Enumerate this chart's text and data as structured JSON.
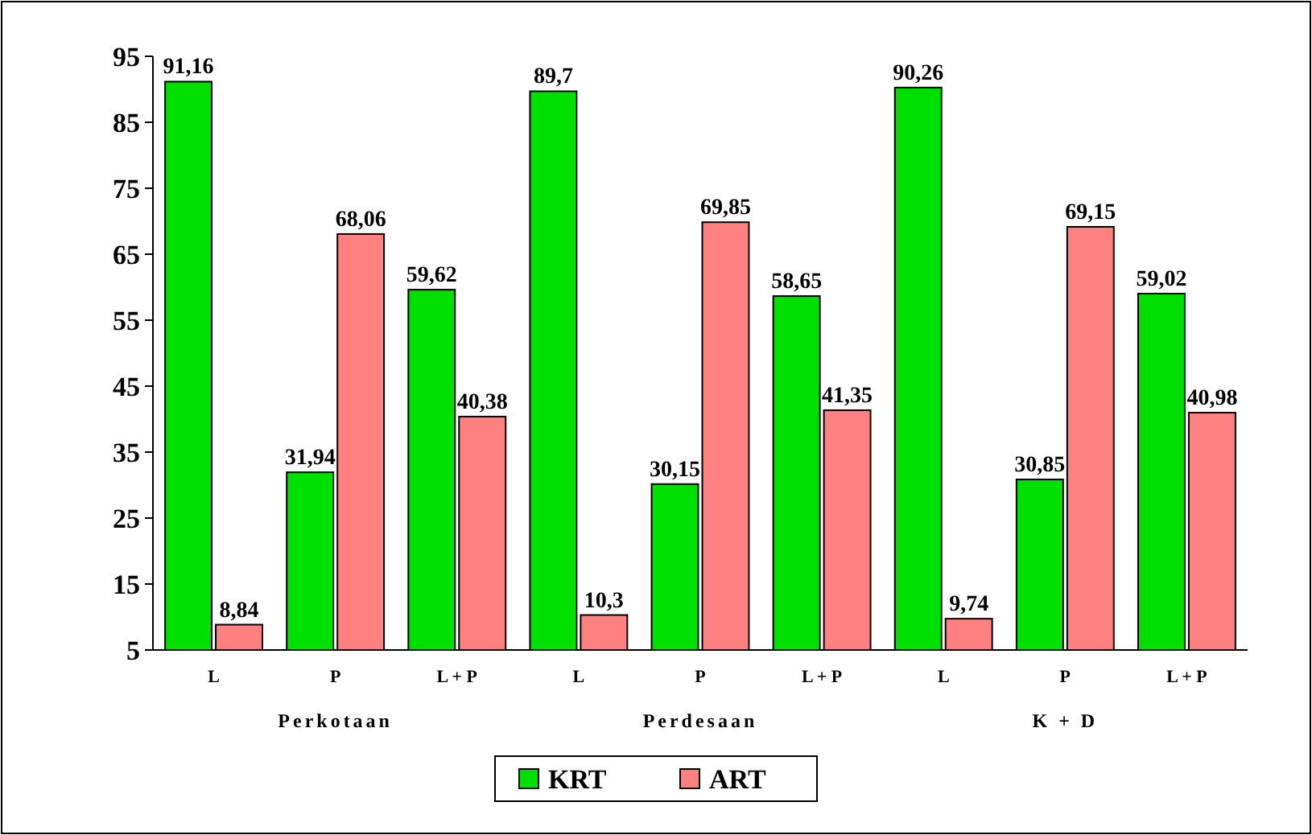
{
  "chart_data": {
    "type": "bar",
    "categories": [
      "L",
      "P",
      "L + P",
      "L",
      "P",
      "L + P",
      "L",
      "P",
      "L + P"
    ],
    "annotations": [
      "Perkotaan",
      "Perdesaan",
      "K + D"
    ],
    "series": [
      {
        "name": "KRT",
        "color": "#00e000",
        "values": [
          91.16,
          31.94,
          59.62,
          89.7,
          30.15,
          58.65,
          90.26,
          30.85,
          59.02
        ],
        "value_labels": [
          "91,16",
          "31,94",
          "59,62",
          "89,7",
          "30,15",
          "58,65",
          "90,26",
          "30,85",
          "59,02"
        ]
      },
      {
        "name": "ART",
        "color": "#ff8080",
        "values": [
          8.84,
          68.06,
          40.38,
          10.3,
          69.85,
          41.35,
          9.74,
          69.15,
          40.98
        ],
        "value_labels": [
          "8,84",
          "68,06",
          "40,38",
          "10,3",
          "69,85",
          "41,35",
          "9,74",
          "69,15",
          "40,98"
        ]
      }
    ],
    "ylim": [
      5,
      95
    ],
    "yticks": [
      5,
      15,
      25,
      35,
      45,
      55,
      65,
      75,
      85,
      95
    ],
    "grid": false,
    "legend": "bottom"
  }
}
